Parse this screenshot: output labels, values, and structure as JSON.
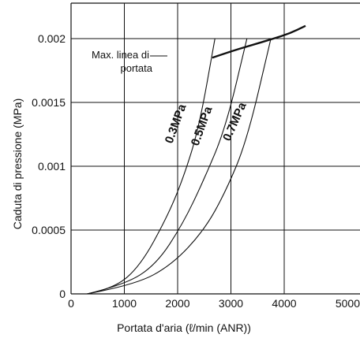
{
  "chart_data": {
    "type": "line",
    "xlabel": "Portata d'aria (ℓ/min (ANR))",
    "ylabel": "Caduta di pressione (MPa)",
    "xlim": [
      0,
      5000
    ],
    "ylim": [
      0,
      0.0022
    ],
    "x_ticks": [
      "0",
      "1000",
      "2000",
      "3000",
      "4000",
      "5000"
    ],
    "y_ticks": [
      "0",
      "0.0005",
      "0.001",
      "0.0015",
      "0.002"
    ],
    "grid": true,
    "series": [
      {
        "name": "0.3MPa",
        "x": [
          300,
          800,
          1300,
          1800,
          2100,
          2400,
          2700
        ],
        "y": [
          0,
          4e-05,
          0.00022,
          0.0006,
          0.0009,
          0.0013,
          0.002
        ]
      },
      {
        "name": "0.5MPa",
        "x": [
          300,
          1000,
          1600,
          2100,
          2500,
          2900,
          3300
        ],
        "y": [
          0,
          7e-05,
          0.00023,
          0.00055,
          0.0009,
          0.0013,
          0.002
        ]
      },
      {
        "name": "0.7MPa",
        "x": [
          300,
          1200,
          1900,
          2500,
          2900,
          3300,
          3750
        ],
        "y": [
          0,
          7e-05,
          0.00023,
          0.0005,
          0.0008,
          0.0012,
          0.002
        ]
      },
      {
        "name": "Max. linea di portata",
        "x": [
          2650,
          3000,
          3400,
          3800,
          4100,
          4400
        ],
        "y": [
          0.00185,
          0.0019,
          0.00195,
          0.002,
          0.00204,
          0.0021
        ]
      }
    ],
    "annotations": {
      "max_line_1": "Max. linea di",
      "max_line_2": "portata"
    }
  }
}
